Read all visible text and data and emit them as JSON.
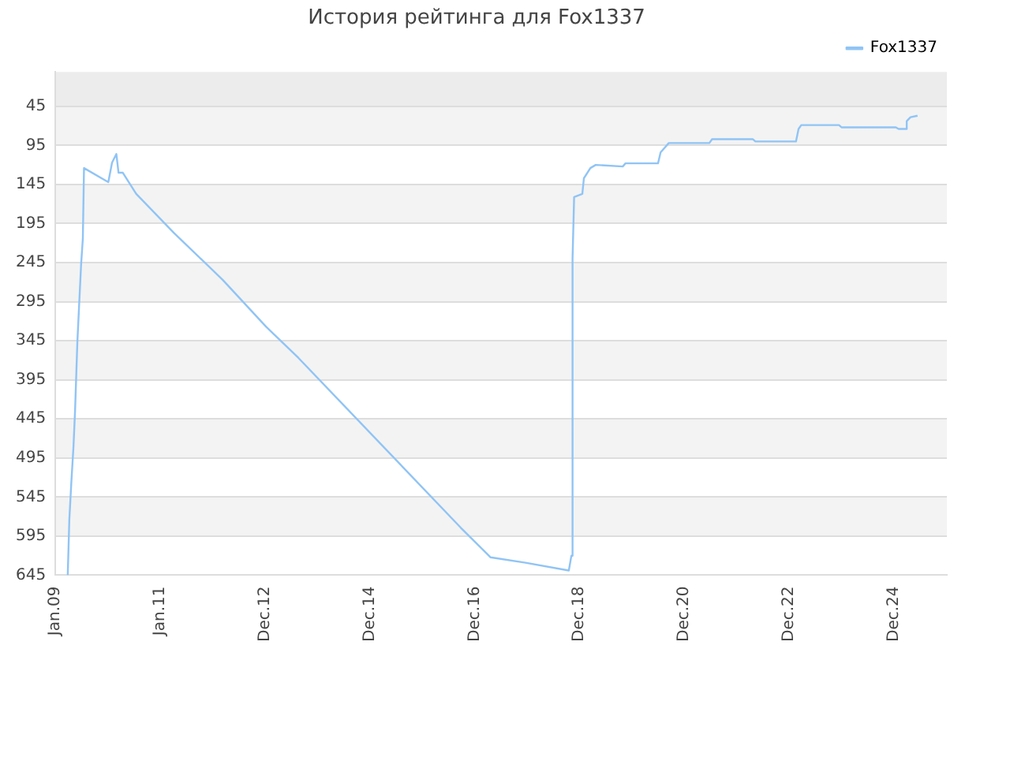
{
  "chart_data": {
    "type": "line",
    "title": "История рейтинга для Fox1337",
    "x": [
      "2009-03-28",
      "2009-04-08",
      "2009-04-22",
      "2009-05-07",
      "2009-05-18",
      "2009-06-03",
      "2009-06-15",
      "2009-06-29",
      "2009-07-11",
      "2009-07-19",
      "2010-01-04",
      "2010-01-30",
      "2010-03-01",
      "2010-03-16",
      "2010-04-15",
      "2010-07-17",
      "2011-04-05",
      "2012-03-09",
      "2013-01-05",
      "2013-08-18",
      "2016-09-18",
      "2017-04-13",
      "2017-12-13",
      "2018-10-10",
      "2018-10-28",
      "2018-11-05",
      "2018-11-16",
      "2019-01-12",
      "2019-01-23",
      "2019-03-09",
      "2019-04-15",
      "2019-10-20",
      "2019-11-08",
      "2020-06-21",
      "2020-07-09",
      "2020-09-04",
      "2021-06-13",
      "2021-07-02",
      "2022-04-10",
      "2022-04-29",
      "2023-02-05",
      "2023-02-23",
      "2023-03-14",
      "2023-12-01",
      "2023-12-20",
      "2024-12-30",
      "2025-01-18",
      "2025-03-16",
      "2025-03-16",
      "2025-04-11",
      "2025-05-30"
    ],
    "series": [
      {
        "name": "Fox1337",
        "color": "#90c4f5",
        "values": [
          645,
          574,
          526,
          480,
          434,
          346,
          300,
          247,
          214,
          124,
          142,
          117,
          106,
          130,
          130,
          157,
          207,
          267,
          327,
          367,
          584,
          622,
          629,
          639,
          620,
          240,
          161,
          157,
          137,
          124,
          120,
          122,
          118,
          118,
          104,
          92,
          92,
          87,
          87,
          90,
          90,
          74,
          69,
          69,
          72,
          72,
          74,
          74,
          64,
          59,
          57
        ]
      }
    ],
    "xlim": [
      "2009-01-01",
      "2025-12-20"
    ],
    "xticks": [
      {
        "value": "2009-01-01",
        "label": "Jan.09"
      },
      {
        "value": "2011-01-01",
        "label": "Jan.11"
      },
      {
        "value": "2012-12-28",
        "label": "Dec.12"
      },
      {
        "value": "2014-12-26",
        "label": "Dec.14"
      },
      {
        "value": "2016-12-24",
        "label": "Dec.16"
      },
      {
        "value": "2018-12-22",
        "label": "Dec.18"
      },
      {
        "value": "2020-12-20",
        "label": "Dec.20"
      },
      {
        "value": "2022-12-18",
        "label": "Dec.22"
      },
      {
        "value": "2024-12-16",
        "label": "Dec.24"
      }
    ],
    "ylim": [
      645,
      1
    ],
    "yticks": [
      45,
      95,
      145,
      195,
      245,
      295,
      345,
      395,
      445,
      495,
      545,
      595,
      645
    ],
    "bands": [
      {
        "axis": "y",
        "from": 1,
        "to": 45,
        "color": "#ececec"
      }
    ],
    "grid": "y",
    "legend": "top right",
    "marker": "none",
    "line_style": "solid"
  }
}
